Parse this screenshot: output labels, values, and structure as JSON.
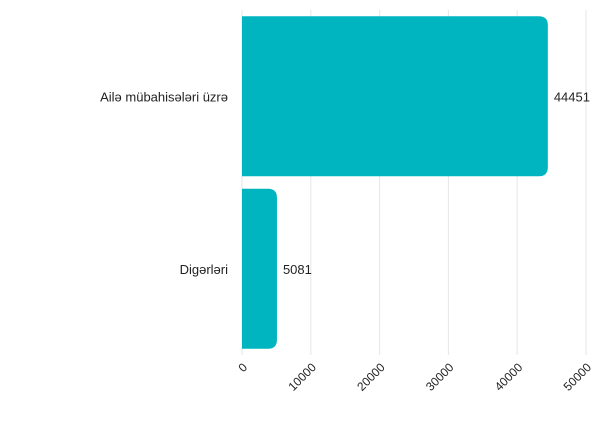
{
  "chart_data": {
    "type": "bar",
    "orientation": "horizontal",
    "categories": [
      "Ailə mübahisələri üzrə",
      "Digərləri"
    ],
    "values": [
      44451,
      5081
    ],
    "data_labels": [
      "44451",
      "5081"
    ],
    "xlim": [
      0,
      50000
    ],
    "x_ticks": [
      0,
      10000,
      20000,
      30000,
      40000,
      50000
    ],
    "x_tick_labels": [
      "0",
      "10000",
      "20000",
      "30000",
      "40000",
      "50000"
    ],
    "bar_color": "#00b5c0",
    "grid": "vertical",
    "legend": "none"
  }
}
